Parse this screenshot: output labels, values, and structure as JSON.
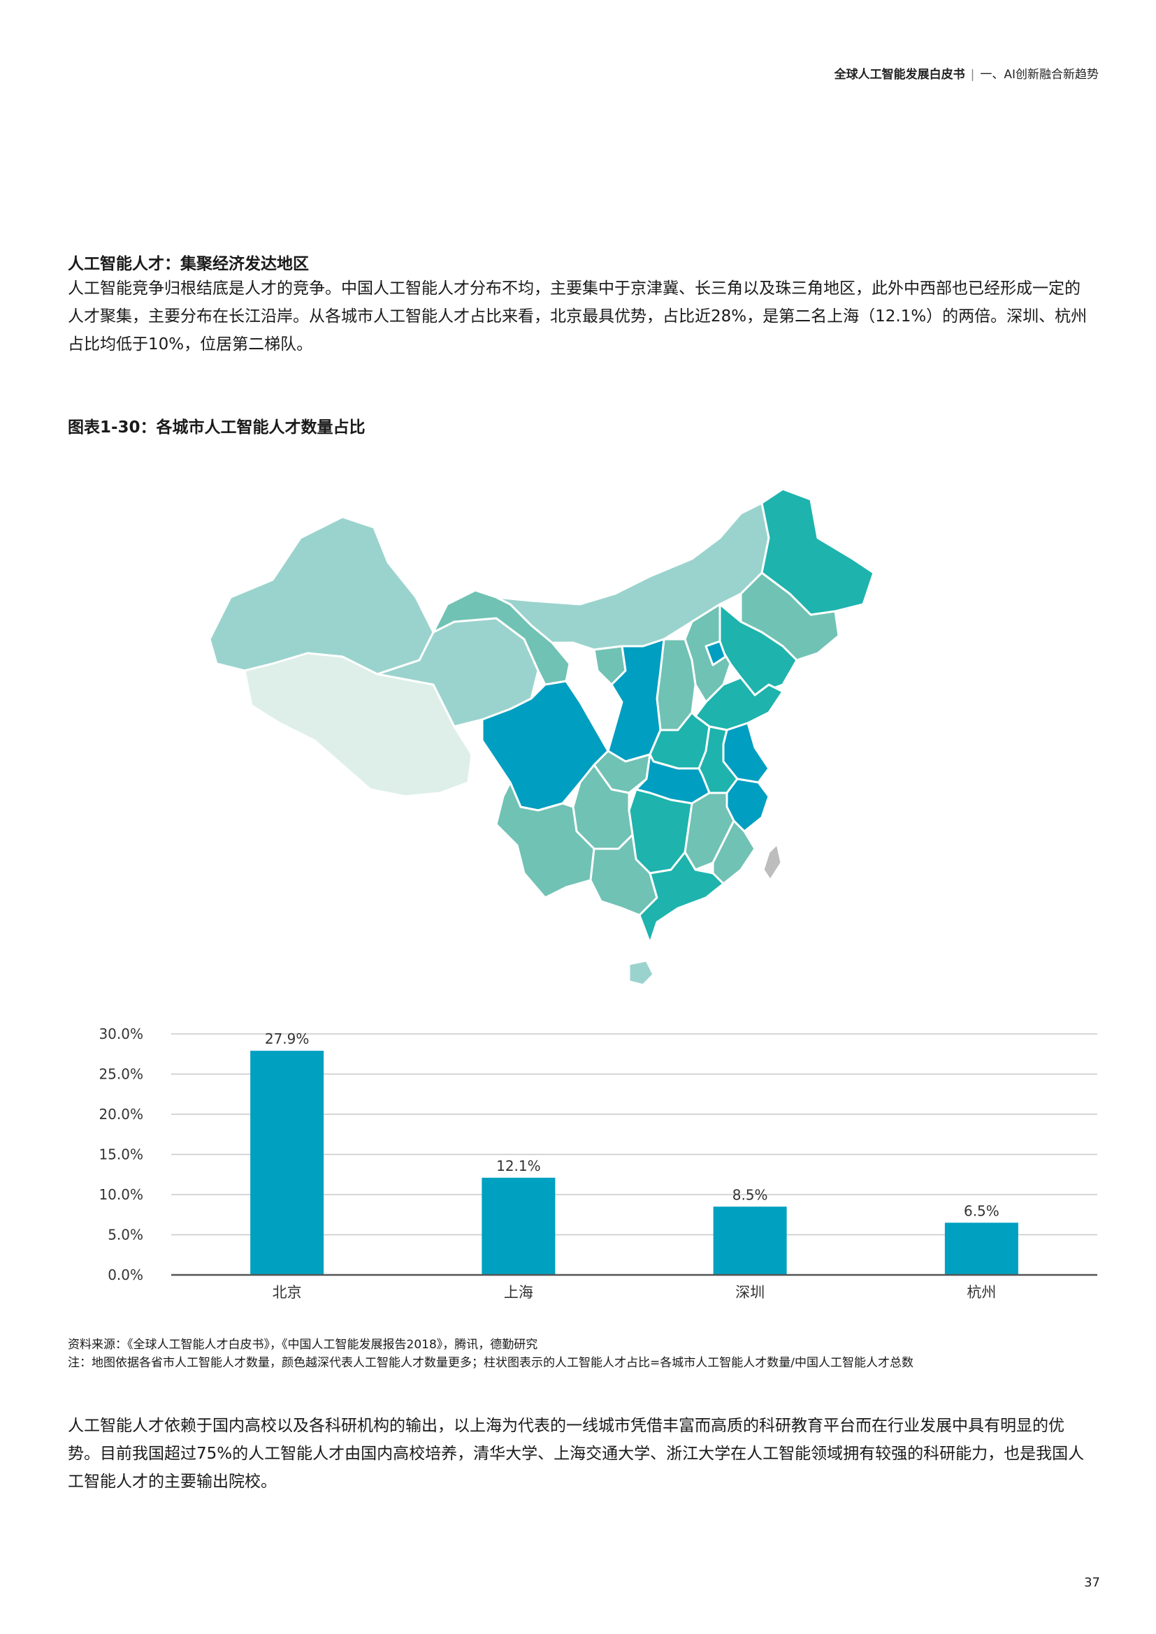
{
  "header": {
    "doc_title": "全球人工智能发展白皮书",
    "separator": "|",
    "chapter": "一、AI创新融合新趋势"
  },
  "section": {
    "title": "人工智能人才：集聚经济发达地区",
    "paragraph": "人工智能竞争归根结底是人才的竞争。中国人工智能人才分布不均，主要集中于京津冀、长三角以及珠三角地区，此外中西部也已经形成一定的人才聚集，主要分布在长江沿岸。从各城市人工智能人才占比来看，北京最具优势，占比近28%，是第二名上海（12.1%）的两倍。深圳、杭州占比均低于10%，位居第二梯队。"
  },
  "figure": {
    "title": "图表1-30：各城市人工智能人才数量占比"
  },
  "map_colors": {
    "lightest": "#deefea",
    "light": "#9ad3cd",
    "medium_light": "#70c2b4",
    "medium": "#1eb3ad",
    "dark": "#00a9b0",
    "darkest": "#009ec0",
    "taiwan": "#bdbdbd"
  },
  "chart_data": {
    "type": "bar",
    "categories": [
      "北京",
      "上海",
      "深圳",
      "杭州"
    ],
    "values": [
      27.9,
      12.1,
      8.5,
      6.5
    ],
    "value_labels": [
      "27.9%",
      "12.1%",
      "8.5%",
      "6.5%"
    ],
    "ylim": [
      0,
      30
    ],
    "yticks": [
      "0.0%",
      "5.0%",
      "10.0%",
      "15.0%",
      "20.0%",
      "25.0%",
      "30.0%"
    ],
    "bar_color": "#00a0c0",
    "grid": true
  },
  "notes": {
    "source": "资料来源：《全球人工智能人才白皮书》，《中国人工智能发展报告2018》，腾讯，德勤研究",
    "note": "注：地图依据各省市人工智能人才数量，颜色越深代表人工智能人才数量更多；柱状图表示的人工智能人才占比=各城市人工智能人才数量/中国人工智能人才总数"
  },
  "body": {
    "paragraph": "人工智能人才依赖于国内高校以及各科研机构的输出，以上海为代表的一线城市凭借丰富而高质的科研教育平台而在行业发展中具有明显的优势。目前我国超过75%的人工智能人才由国内高校培养，清华大学、上海交通大学、浙江大学在人工智能领域拥有较强的科研能力，也是我国人工智能人才的主要输出院校。"
  },
  "page_number": "37"
}
